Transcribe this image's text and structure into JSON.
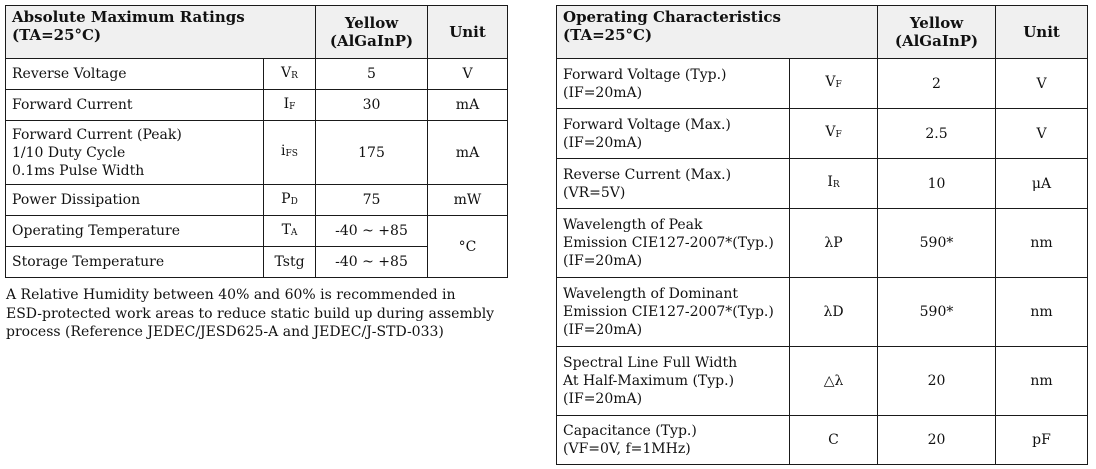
{
  "abs_table": {
    "title_line1": "Absolute Maximum Ratings",
    "title_line2": "(TA=25°C)",
    "col_color_line1": "Yellow",
    "col_color_line2": "(AlGaInP)",
    "col_unit": "Unit",
    "rows": [
      {
        "param": [
          "Reverse Voltage"
        ],
        "symbol": "VR",
        "value": "5",
        "unit": "V"
      },
      {
        "param": [
          "Forward Current"
        ],
        "symbol": "IF",
        "value": "30",
        "unit": "mA"
      },
      {
        "param": [
          "Forward Current (Peak)",
          "1/10 Duty Cycle",
          "0.1ms Pulse Width"
        ],
        "symbol": "iFS",
        "value": "175",
        "unit": "mA"
      },
      {
        "param": [
          "Power Dissipation"
        ],
        "symbol": "PD",
        "value": "75",
        "unit": "mW"
      },
      {
        "param": [
          "Operating Temperature"
        ],
        "symbol": "TA",
        "value": "-40 ~ +85",
        "unit": "°C"
      },
      {
        "param": [
          "Storage Temperature"
        ],
        "symbol": "Tstg",
        "value": "-40 ~ +85",
        "unit": ""
      }
    ]
  },
  "note_lines": [
    "A Relative Humidity between 40% and 60% is recommended in",
    "ESD-protected work areas to reduce static build up during assembly",
    "process (Reference JEDEC/JESD625-A and JEDEC/J-STD-033)"
  ],
  "op_table": {
    "title_line1": "Operating Characteristics",
    "title_line2": "(TA=25°C)",
    "col_color_line1": "Yellow",
    "col_color_line2": "(AlGaInP)",
    "col_unit": "Unit",
    "rows": [
      {
        "param": [
          "Forward Voltage (Typ.)",
          "(IF=20mA)"
        ],
        "symbol": "VF",
        "value": "2",
        "unit": "V"
      },
      {
        "param": [
          "Forward Voltage (Max.)",
          "(IF=20mA)"
        ],
        "symbol": "VF",
        "value": "2.5",
        "unit": "V"
      },
      {
        "param": [
          "Reverse Current (Max.)",
          "(VR=5V)"
        ],
        "symbol": "IR",
        "value": "10",
        "unit": "μA"
      },
      {
        "param": [
          "Wavelength of Peak",
          "Emission CIE127-2007*(Typ.)",
          "(IF=20mA)"
        ],
        "symbol": "λP",
        "value": "590*",
        "unit": "nm"
      },
      {
        "param": [
          "Wavelength of Dominant",
          "Emission CIE127-2007*(Typ.)",
          "(IF=20mA)"
        ],
        "symbol": "λD",
        "value": "590*",
        "unit": "nm"
      },
      {
        "param": [
          "Spectral Line Full Width",
          "At Half-Maximum (Typ.)",
          "(IF=20mA)"
        ],
        "symbol": "△λ",
        "value": "20",
        "unit": "nm"
      },
      {
        "param": [
          "Capacitance (Typ.)",
          "(VF=0V, f=1MHz)"
        ],
        "symbol": "C",
        "value": "20",
        "unit": "pF"
      }
    ]
  }
}
